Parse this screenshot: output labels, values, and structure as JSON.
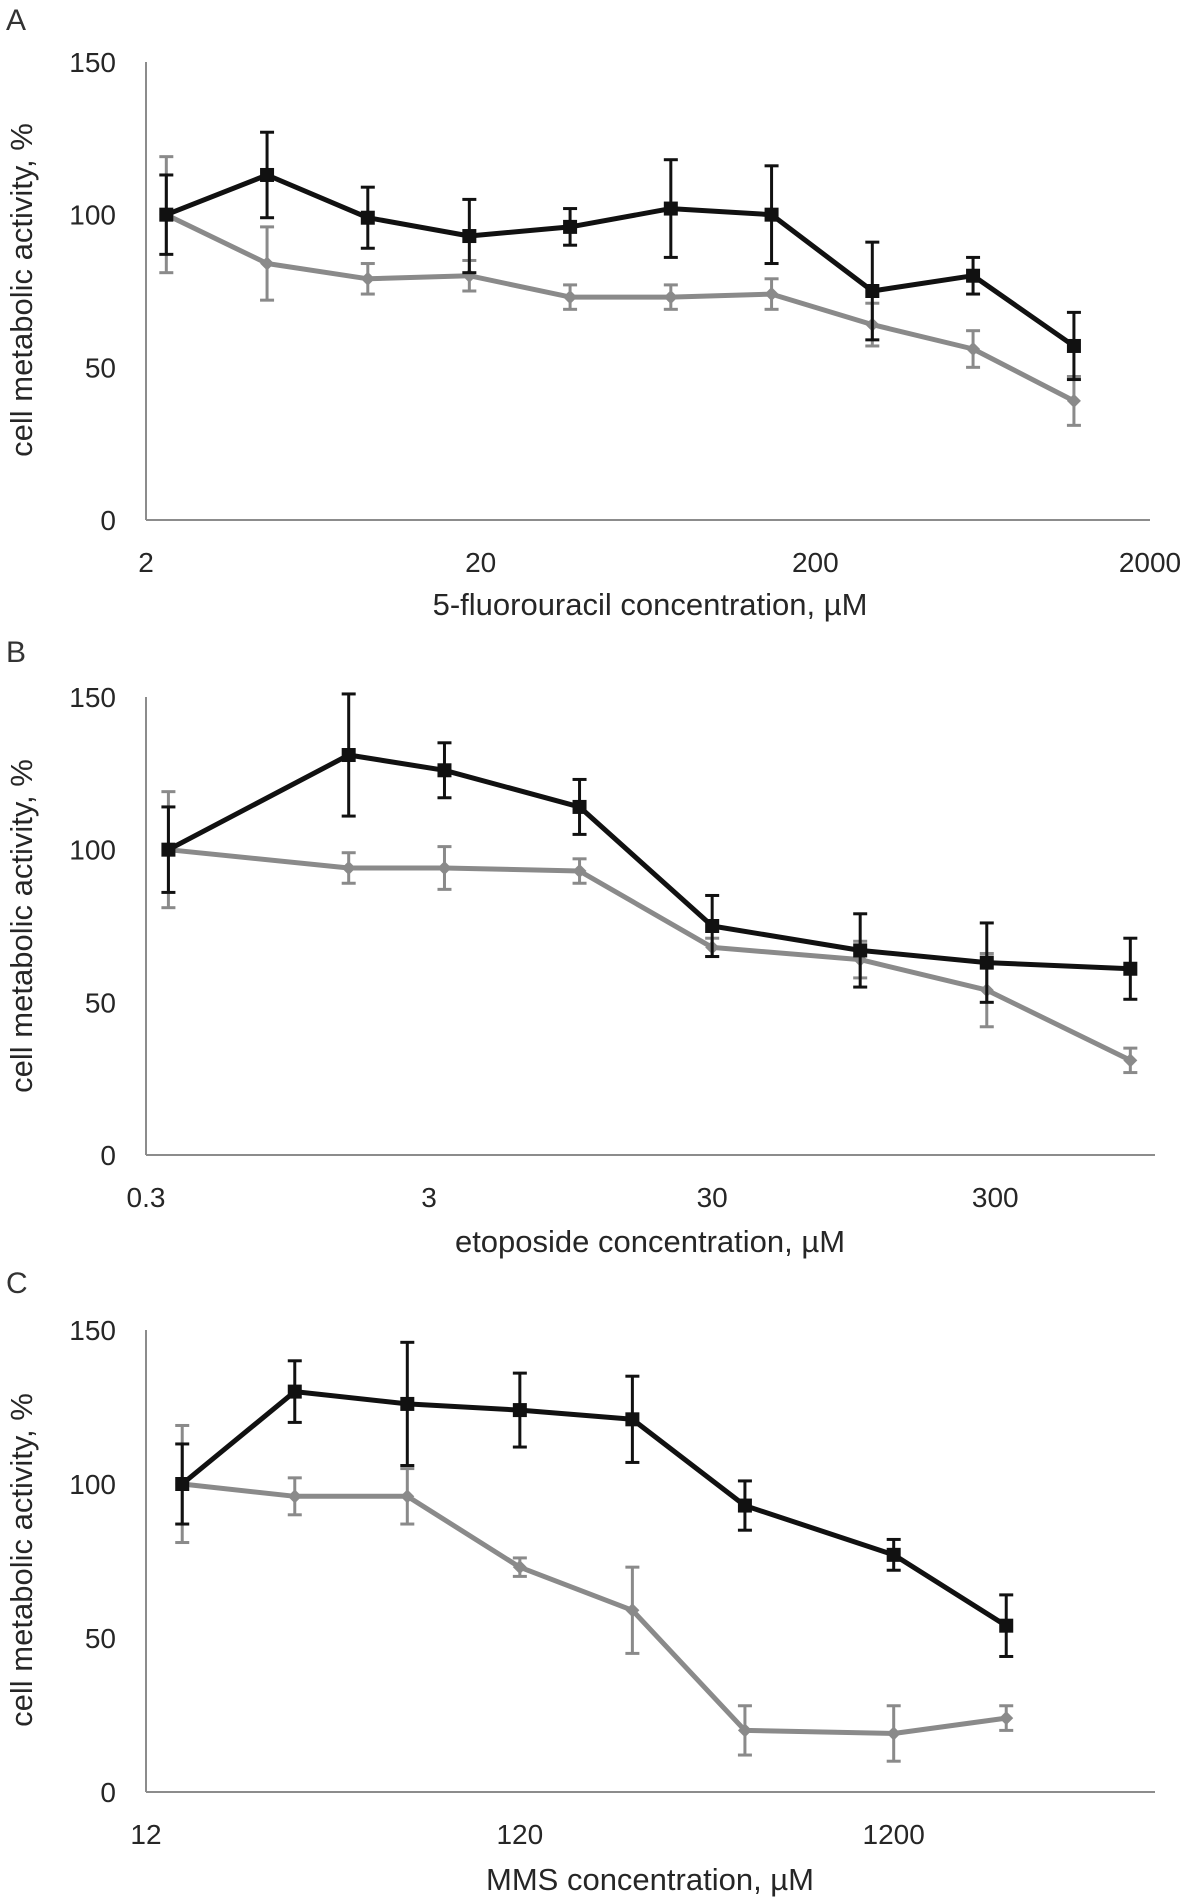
{
  "figure": {
    "panel_count": 3
  },
  "chart_data": [
    {
      "type": "line",
      "panel_label": "A",
      "xscale": "log",
      "xlabel": "5-fluorouracil concentration, µM",
      "ylabel": "cell metabolic activity, %",
      "ylim": [
        0,
        150
      ],
      "yticks": [
        0,
        50,
        100,
        150
      ],
      "ytick_labels": [
        "0",
        "50",
        "100",
        "150"
      ],
      "xlim": [
        2,
        2000
      ],
      "xticks": [
        2,
        20,
        200,
        2000
      ],
      "xtick_labels": [
        "2",
        "20",
        "200",
        "2000"
      ],
      "grid": false,
      "series": [
        {
          "name": "black series",
          "color": "#111111",
          "marker": "square",
          "x": [
            2.3,
            4.6,
            9.2,
            18.5,
            37,
            74,
            148,
            296,
            592,
            1185
          ],
          "values": [
            100,
            113,
            99,
            93,
            96,
            102,
            100,
            75,
            80,
            57
          ],
          "errors": [
            13,
            14,
            10,
            12,
            6,
            16,
            16,
            16,
            6,
            11
          ]
        },
        {
          "name": "grey series",
          "color": "#8a8a8a",
          "marker": "diamond",
          "x": [
            2.3,
            4.6,
            9.2,
            18.5,
            37,
            74,
            148,
            296,
            592,
            1185
          ],
          "values": [
            100,
            84,
            79,
            80,
            73,
            73,
            74,
            64,
            56,
            39
          ],
          "errors": [
            19,
            12,
            5,
            5,
            4,
            4,
            5,
            7,
            6,
            8
          ]
        }
      ]
    },
    {
      "type": "line",
      "panel_label": "B",
      "xscale": "log",
      "xlabel": "etoposide concentration, µM",
      "ylabel": "cell metabolic activity, %",
      "ylim": [
        0,
        150
      ],
      "yticks": [
        0,
        50,
        100,
        150
      ],
      "ytick_labels": [
        "0",
        "50",
        "100",
        "150"
      ],
      "xlim": [
        0.3,
        1100
      ],
      "xticks": [
        0.3,
        3,
        30,
        300
      ],
      "xtick_labels": [
        "0.3",
        "3",
        "30",
        "300"
      ],
      "grid": false,
      "series": [
        {
          "name": "black series",
          "color": "#111111",
          "marker": "square",
          "x": [
            0.36,
            1.56,
            3.4,
            10.2,
            30,
            100,
            280,
            900
          ],
          "values": [
            100,
            131,
            126,
            114,
            75,
            67,
            63,
            61
          ],
          "errors": [
            14,
            20,
            9,
            9,
            10,
            12,
            13,
            10
          ]
        },
        {
          "name": "grey series",
          "color": "#8a8a8a",
          "marker": "diamond",
          "x": [
            0.36,
            1.56,
            3.4,
            10.2,
            30,
            100,
            280,
            900
          ],
          "values": [
            100,
            94,
            94,
            93,
            68,
            64,
            54,
            31
          ],
          "errors": [
            19,
            5,
            7,
            4,
            3,
            6,
            12,
            4
          ]
        }
      ]
    },
    {
      "type": "line",
      "panel_label": "C",
      "xscale": "log",
      "xlabel": "MMS concentration, µM",
      "ylabel": "cell metabolic activity, %",
      "ylim": [
        0,
        150
      ],
      "yticks": [
        0,
        50,
        100,
        150
      ],
      "ytick_labels": [
        "0",
        "50",
        "100",
        "150"
      ],
      "xlim": [
        12,
        6000
      ],
      "xticks": [
        12,
        120,
        1200
      ],
      "xtick_labels": [
        "12",
        "120",
        "1200"
      ],
      "grid": false,
      "series": [
        {
          "name": "black series",
          "color": "#111111",
          "marker": "square",
          "x": [
            15,
            30,
            60,
            120,
            240,
            480,
            1200,
            2400
          ],
          "values": [
            100,
            130,
            126,
            124,
            121,
            93,
            77,
            54
          ],
          "errors": [
            13,
            10,
            20,
            12,
            14,
            8,
            5,
            10
          ]
        },
        {
          "name": "grey series",
          "color": "#8a8a8a",
          "marker": "diamond",
          "x": [
            15,
            30,
            60,
            120,
            240,
            480,
            1200,
            2400
          ],
          "values": [
            100,
            96,
            96,
            73,
            59,
            20,
            19,
            24
          ],
          "errors": [
            19,
            6,
            9,
            3,
            14,
            8,
            9,
            4
          ]
        }
      ]
    }
  ]
}
